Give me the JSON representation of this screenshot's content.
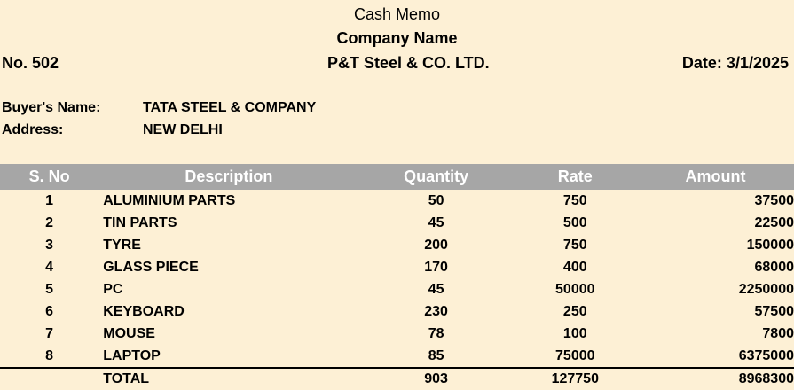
{
  "header": {
    "memo_title": "Cash Memo",
    "company_label": "Company Name",
    "number": "No.  502",
    "company": "P&T Steel  & CO. LTD.",
    "date": "Date: 3/1/2025"
  },
  "buyer": {
    "name_label": "Buyer's Name:",
    "name_value": "TATA STEEL & COMPANY",
    "address_label": "Address:",
    "address_value": "NEW DELHI"
  },
  "table": {
    "columns": [
      "S. No",
      "Description",
      "Quantity",
      "Rate",
      "Amount"
    ],
    "rows": [
      [
        "1",
        "ALUMINIUM PARTS",
        "50",
        "750",
        "37500"
      ],
      [
        "2",
        "TIN PARTS",
        "45",
        "500",
        "22500"
      ],
      [
        "3",
        "TYRE",
        "200",
        "750",
        "150000"
      ],
      [
        "4",
        "GLASS PIECE",
        "170",
        "400",
        "68000"
      ],
      [
        "5",
        "PC",
        "45",
        "50000",
        "2250000"
      ],
      [
        "6",
        "KEYBOARD",
        "230",
        "250",
        "57500"
      ],
      [
        "7",
        "MOUSE",
        "78",
        "100",
        "7800"
      ],
      [
        "8",
        "LAPTOP",
        "85",
        "75000",
        "6375000"
      ]
    ],
    "total": [
      "",
      "TOTAL",
      "903",
      "127750",
      "8968300"
    ]
  }
}
